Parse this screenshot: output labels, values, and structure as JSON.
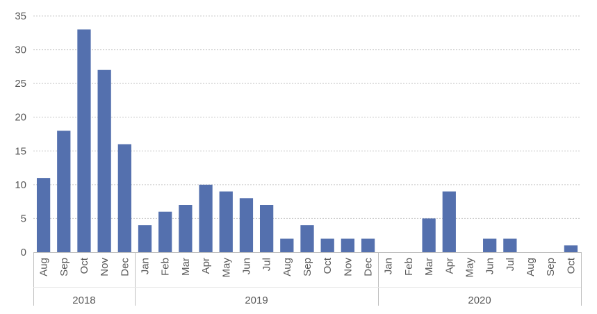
{
  "chart_data": {
    "type": "bar",
    "title": "",
    "xlabel": "",
    "ylabel": "",
    "ylim": [
      0,
      35
    ],
    "yticks": [
      0,
      5,
      10,
      15,
      20,
      25,
      30,
      35
    ],
    "grid": true,
    "color": "#5470AE",
    "groups": [
      {
        "label": "2018",
        "categories": [
          "Aug",
          "Sep",
          "Oct",
          "Nov",
          "Dec"
        ]
      },
      {
        "label": "2019",
        "categories": [
          "Jan",
          "Feb",
          "Mar",
          "Apr",
          "May",
          "Jun",
          "Jul",
          "Aug",
          "Sep",
          "Oct",
          "Nov",
          "Dec"
        ]
      },
      {
        "label": "2020",
        "categories": [
          "Jan",
          "Feb",
          "Mar",
          "Apr",
          "May",
          "Jun",
          "Jul",
          "Aug",
          "Sep",
          "Oct"
        ]
      }
    ],
    "values": [
      11,
      18,
      33,
      27,
      16,
      4,
      6,
      7,
      10,
      9,
      8,
      7,
      2,
      4,
      2,
      2,
      2,
      0,
      0,
      5,
      9,
      0,
      2,
      2,
      0,
      0,
      1
    ]
  }
}
